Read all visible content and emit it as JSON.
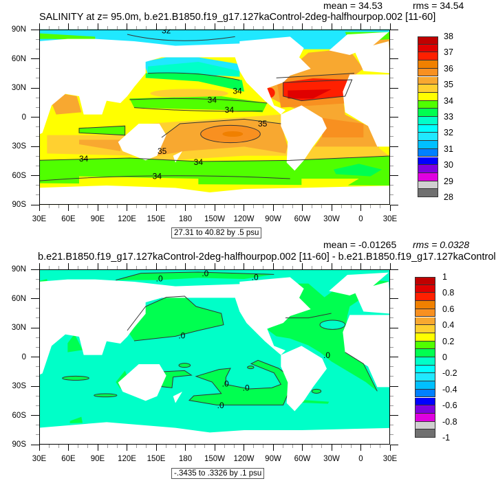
{
  "top_panel": {
    "title": "SALINITY at z=  95.0m, b.e21.B1850.f19_g17.127kaControl-2deg-halfhourpop.002 [11-60]",
    "mean": "mean = 34.53",
    "rms": "rms = 34.54",
    "range_note": "27.31 to 40.82 by .5 psu",
    "colorbar_labels": [
      "38",
      "37",
      "36",
      "35",
      "34",
      "33",
      "32",
      "31",
      "30",
      "29",
      "28"
    ],
    "contour_labels": [
      "32",
      "34",
      "34",
      "34",
      "35",
      "35",
      "34",
      "34",
      "34"
    ]
  },
  "bottom_panel": {
    "title": "b.e21.B1850.f19_g17.127kaControl-2deg-halfhourpop.002 [11-60] - b.e21.B1850.f19_g17.127kaControl",
    "mean": "mean = -0.01265",
    "rms": "rms = 0.0328",
    "range_note": "-.3435 to .3326 by .1 psu",
    "colorbar_labels": [
      "1",
      "0.8",
      "0.6",
      "0.4",
      "0.2",
      "0",
      "-0.2",
      "-0.4",
      "-0.6",
      "-0.8",
      "-1"
    ],
    "contour_labels": [
      ".0",
      ".0",
      ".0",
      ".0",
      ".0",
      ".0",
      ".0",
      ".0"
    ]
  },
  "axes": {
    "x_labels": [
      "30E",
      "60E",
      "90E",
      "120E",
      "150E",
      "180",
      "150W",
      "120W",
      "90W",
      "60W",
      "30W",
      "0",
      "30E"
    ],
    "y_labels": [
      "90N",
      "60N",
      "30N",
      "0",
      "30S",
      "60S",
      "90S"
    ]
  },
  "colors": {
    "colorbar": [
      "#c00000",
      "#e00000",
      "#ff2000",
      "#f08000",
      "#f89020",
      "#f8a830",
      "#ffd030",
      "#ffff00",
      "#50ff00",
      "#00ff50",
      "#00ffc8",
      "#00ffff",
      "#20e8ff",
      "#00c0ff",
      "#0080ff",
      "#0000ff",
      "#8000e0",
      "#e000e0",
      "#d0d0d0",
      "#707070"
    ],
    "land": "#ffffff"
  }
}
